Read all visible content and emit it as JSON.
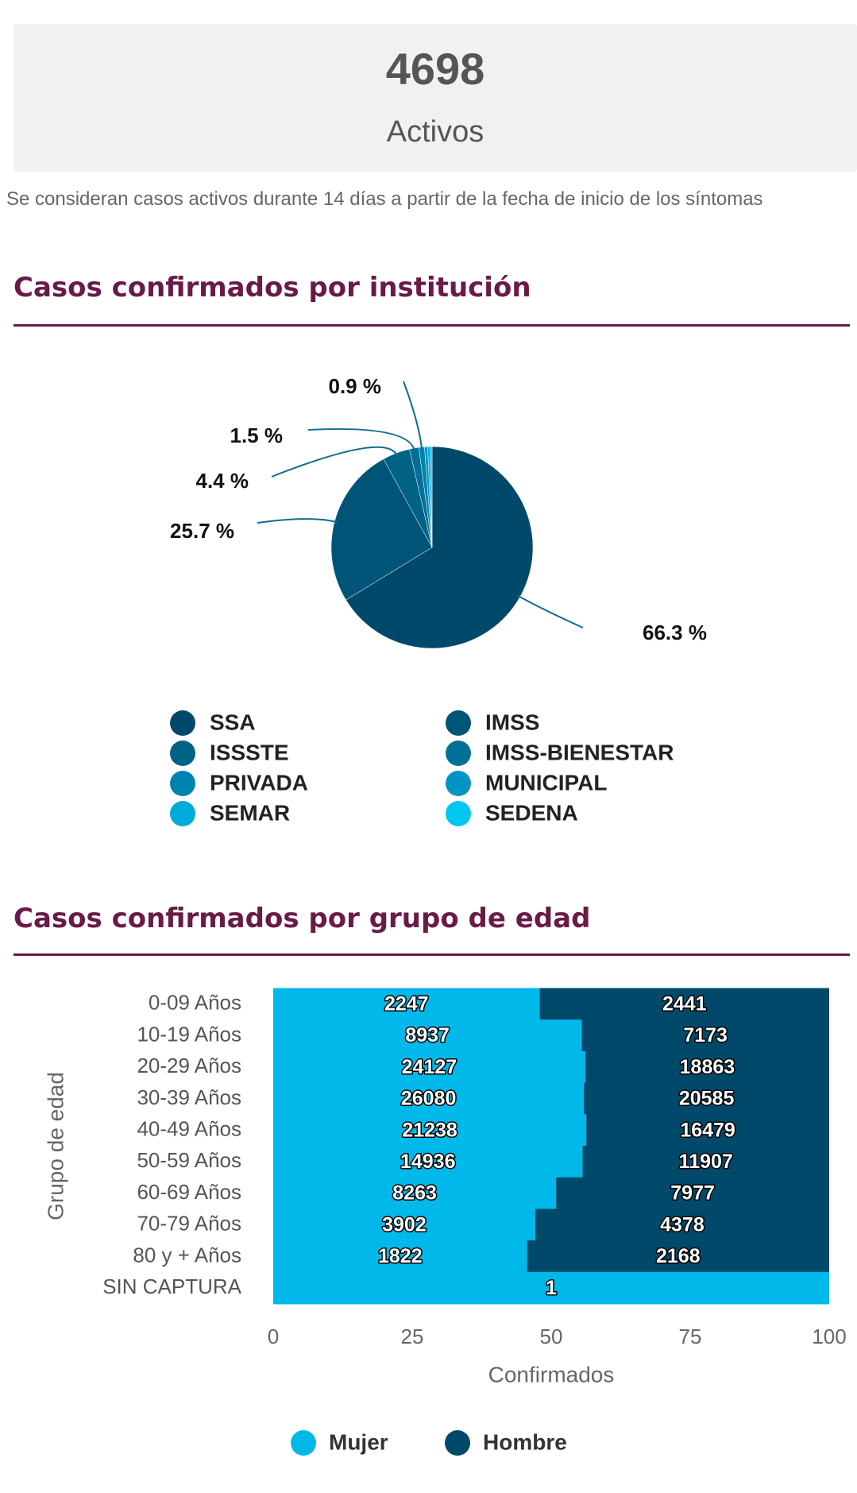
{
  "header": {
    "value": 4698,
    "label": "Activos"
  },
  "note": "Se consideran casos activos durante 14 días a partir de la fecha de inicio de los síntomas",
  "chart_data": [
    {
      "type": "pie",
      "title": "Casos confirmados por institución",
      "categories": [
        "SSA",
        "IMSS",
        "ISSSTE",
        "IMSS-BIENESTAR",
        "PRIVADA",
        "MUNICIPAL",
        "SEMAR",
        "SEDENA"
      ],
      "values": [
        66.3,
        25.7,
        4.4,
        1.5,
        0.9,
        0.5,
        0.4,
        0.3
      ],
      "value_labels": [
        "66.3 %",
        "25.7 %",
        "4.4 %",
        "1.5 %",
        "0.9 %",
        null,
        null,
        null
      ],
      "colors": [
        "#00496b",
        "#005478",
        "#006285",
        "#007096",
        "#0083b0",
        "#0095c2",
        "#00abdc",
        "#00c6f2"
      ],
      "legend": "bottom"
    },
    {
      "type": "bar",
      "orientation": "horizontal",
      "stacking": "percent",
      "title": "Casos confirmados por grupo de edad",
      "xlabel": "Confirmados",
      "ylabel": "Grupo de edad",
      "categories": [
        "0-09 Años",
        "10-19 Años",
        "20-29 Años",
        "30-39 Años",
        "40-49 Años",
        "50-59 Años",
        "60-69 Años",
        "70-79 Años",
        "80 y + Años",
        "SIN CAPTURA"
      ],
      "series": [
        {
          "name": "Mujer",
          "color": "#00b9eb",
          "values": [
            2247,
            8937,
            24127,
            26080,
            21238,
            14936,
            8263,
            3902,
            1822,
            1
          ]
        },
        {
          "name": "Hombre",
          "color": "#00496b",
          "values": [
            2441,
            7173,
            18863,
            20585,
            16479,
            11907,
            7977,
            4378,
            2168,
            null
          ]
        }
      ],
      "xlim": [
        0,
        100
      ],
      "xticks": [
        0,
        25,
        50,
        75,
        100
      ],
      "legend": "bottom"
    }
  ]
}
